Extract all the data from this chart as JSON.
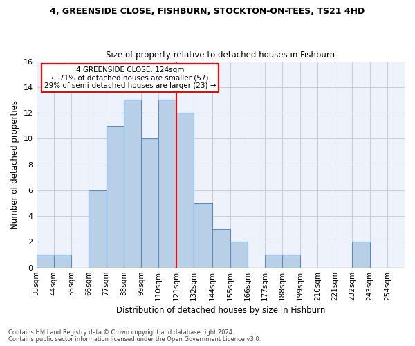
{
  "title1": "4, GREENSIDE CLOSE, FISHBURN, STOCKTON-ON-TEES, TS21 4HD",
  "title2": "Size of property relative to detached houses in Fishburn",
  "xlabel": "Distribution of detached houses by size in Fishburn",
  "ylabel": "Number of detached properties",
  "bins": [
    "33sqm",
    "44sqm",
    "55sqm",
    "66sqm",
    "77sqm",
    "88sqm",
    "99sqm",
    "110sqm",
    "121sqm",
    "132sqm",
    "144sqm",
    "155sqm",
    "166sqm",
    "177sqm",
    "188sqm",
    "199sqm",
    "210sqm",
    "221sqm",
    "232sqm",
    "243sqm",
    "254sqm"
  ],
  "values": [
    1,
    1,
    0,
    6,
    11,
    13,
    10,
    13,
    12,
    5,
    3,
    2,
    0,
    1,
    1,
    0,
    0,
    0,
    2,
    0,
    0
  ],
  "bin_edges": [
    33,
    44,
    55,
    66,
    77,
    88,
    99,
    110,
    121,
    132,
    144,
    155,
    166,
    177,
    188,
    199,
    210,
    221,
    232,
    243,
    254
  ],
  "bar_color": "#b8cfe8",
  "bar_edge_color": "#5a8fc2",
  "vline_x": 121,
  "vline_color": "red",
  "annotation_title": "4 GREENSIDE CLOSE: 124sqm",
  "annotation_line1": "← 71% of detached houses are smaller (57)",
  "annotation_line2": "29% of semi-detached houses are larger (23) →",
  "annotation_box_color": "white",
  "annotation_box_edge": "red",
  "ylim": [
    0,
    16
  ],
  "yticks": [
    0,
    2,
    4,
    6,
    8,
    10,
    12,
    14,
    16
  ],
  "bg_color": "#eef2fb",
  "grid_color": "#c8d0e0",
  "footnote1": "Contains HM Land Registry data © Crown copyright and database right 2024.",
  "footnote2": "Contains public sector information licensed under the Open Government Licence v3.0."
}
